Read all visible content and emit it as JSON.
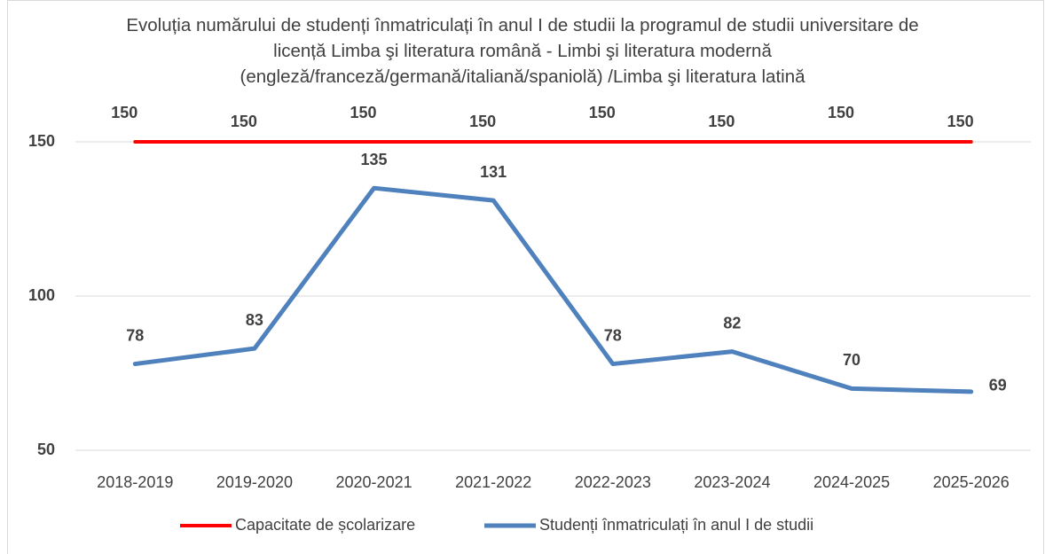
{
  "chart_data": {
    "type": "line",
    "title": "Evoluția numărului de studenți înmatriculați în anul I de studii la programul de studii universitare de licență Limba şi literatura română - Limbi şi literatura modernă (engleză/franceză/germană/italiană/spaniolă) /Limba şi literatura latină",
    "categories": [
      "2018-2019",
      "2019-2020",
      "2020-2021",
      "2021-2022",
      "2022-2023",
      "2023-2024",
      "2024-2025",
      "2025-2026"
    ],
    "series": [
      {
        "name": "Capacitate de școlarizare",
        "color": "#ff0000",
        "values": [
          150,
          150,
          150,
          150,
          150,
          150,
          150,
          150
        ]
      },
      {
        "name": "Studenți înmatriculați în anul I de studii",
        "color": "#4f81bd",
        "values": [
          78,
          83,
          135,
          131,
          78,
          82,
          70,
          69
        ]
      }
    ],
    "ylim": [
      50,
      150
    ],
    "yticks": [
      50,
      100,
      150
    ],
    "grid": true,
    "legend": "bottom"
  }
}
